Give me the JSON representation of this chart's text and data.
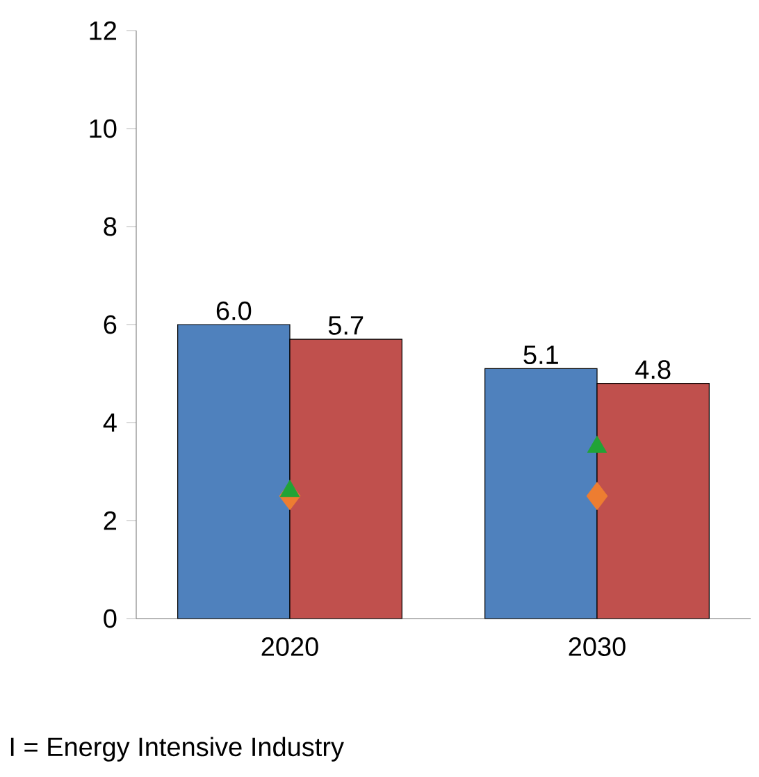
{
  "chart_data": {
    "type": "bar",
    "categories": [
      "2020",
      "2030"
    ],
    "series": [
      {
        "color": "#4f81bd",
        "values": [
          6.0,
          5.1
        ],
        "value_labels": [
          "6.0",
          "5.1"
        ]
      },
      {
        "color": "#c0504d",
        "values": [
          5.7,
          4.8
        ],
        "value_labels": [
          "5.7",
          "4.8"
        ]
      },
      {
        "type": "scatter",
        "marker": "diamond",
        "color": "#ed7d31",
        "values": [
          2.5,
          2.5
        ]
      },
      {
        "type": "scatter",
        "marker": "triangle",
        "color": "#21a336",
        "values": [
          2.6,
          3.5
        ]
      }
    ],
    "ylim": [
      0,
      12
    ],
    "yticks": [
      0,
      2,
      4,
      6,
      8,
      10,
      12
    ],
    "grid": false,
    "annotations": [
      "I = Energy Intensive Industry"
    ]
  }
}
